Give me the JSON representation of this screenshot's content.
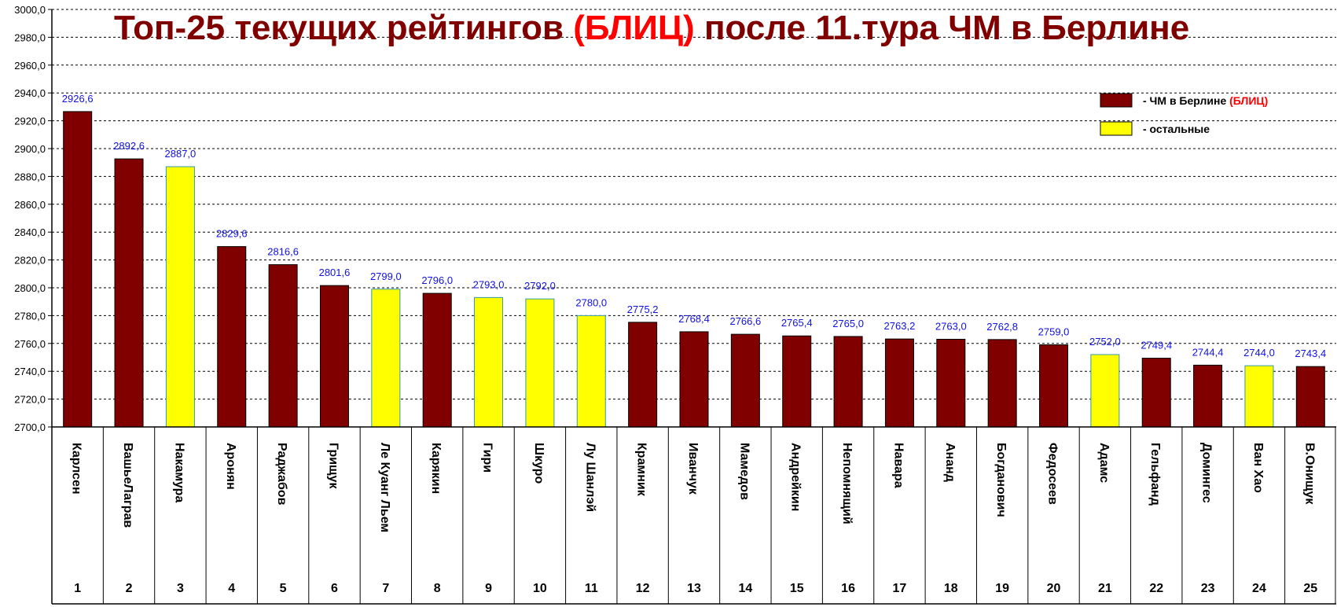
{
  "chart_data": {
    "type": "bar",
    "title": {
      "part1": "Топ-25 текущих рейтингов ",
      "part2": "(БЛИЦ)",
      "part3": " после 11.тура ЧМ в Берлине"
    },
    "colors": {
      "title": "#800000",
      "title_highlight": "#ff0000",
      "berlin": "#800000",
      "others": "#ffff00",
      "data_label": "#1111dd",
      "grid": "#000000"
    },
    "ylim": [
      2700,
      3000
    ],
    "ytick_step": 20,
    "ytick_labels": [
      "2700,0",
      "2720,0",
      "2740,0",
      "2760,0",
      "2780,0",
      "2800,0",
      "2820,0",
      "2840,0",
      "2860,0",
      "2880,0",
      "2900,0",
      "2920,0",
      "2940,0",
      "2960,0",
      "2980,0",
      "3000,0"
    ],
    "grid": true,
    "legend": {
      "placement": "top-right",
      "items": [
        {
          "key": "berlin",
          "label": "- ЧМ в Берлине ",
          "highlight": "(БЛИЦ)"
        },
        {
          "key": "others",
          "label": "- остальные",
          "highlight": ""
        }
      ]
    },
    "categories": [
      "Карлсен",
      "ВашьеЛаграв",
      "Накамура",
      "Аронян",
      "Раджабов",
      "Грищук",
      "Ле Куанг Льем",
      "Карякин",
      "Гири",
      "Шкуро",
      "Лу Шанлэй",
      "Крамник",
      "Иванчук",
      "Мамедов",
      "Андрейкин",
      "Непомнящий",
      "Навара",
      "Ананд",
      "Богданович",
      "Федосеев",
      "Адамс",
      "Гельфанд",
      "Домингес",
      "Ван Хао",
      "В.Онищук"
    ],
    "ranks": [
      "1",
      "2",
      "3",
      "4",
      "5",
      "6",
      "7",
      "8",
      "9",
      "10",
      "11",
      "12",
      "13",
      "14",
      "15",
      "16",
      "17",
      "18",
      "19",
      "20",
      "21",
      "22",
      "23",
      "24",
      "25"
    ],
    "values": [
      2926.6,
      2892.6,
      2887.0,
      2829.6,
      2816.6,
      2801.6,
      2799.0,
      2796.0,
      2793.0,
      2792.0,
      2780.0,
      2775.2,
      2768.4,
      2766.6,
      2765.4,
      2765.0,
      2763.2,
      2763.0,
      2762.8,
      2759.0,
      2752.0,
      2749.4,
      2744.4,
      2744.0,
      2743.4
    ],
    "value_labels": [
      "2926,6",
      "2892,6",
      "2887,0",
      "2829,6",
      "2816,6",
      "2801,6",
      "2799,0",
      "2796,0",
      "2793,0",
      "2792,0",
      "2780,0",
      "2775,2",
      "2768,4",
      "2766,6",
      "2765,4",
      "2765,0",
      "2763,2",
      "2763,0",
      "2762,8",
      "2759,0",
      "2752,0",
      "2749,4",
      "2744,4",
      "2744,0",
      "2743,4"
    ],
    "groups": [
      "berlin",
      "berlin",
      "others",
      "berlin",
      "berlin",
      "berlin",
      "others",
      "berlin",
      "others",
      "others",
      "others",
      "berlin",
      "berlin",
      "berlin",
      "berlin",
      "berlin",
      "berlin",
      "berlin",
      "berlin",
      "berlin",
      "others",
      "berlin",
      "berlin",
      "others",
      "berlin"
    ]
  }
}
